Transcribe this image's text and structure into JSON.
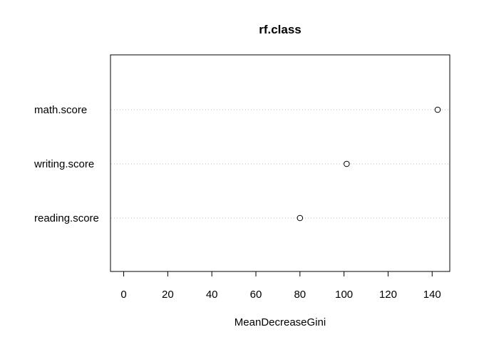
{
  "chart_data": {
    "type": "scatter",
    "title": "rf.class",
    "xlabel": "MeanDecreaseGini",
    "ylabel": "",
    "categories": [
      "math.score",
      "writing.score",
      "reading.score"
    ],
    "values": [
      142.5,
      101.2,
      80.0
    ],
    "xlim": [
      -6,
      148
    ],
    "xticks": [
      0,
      20,
      40,
      60,
      80,
      100,
      120,
      140
    ],
    "grid": "dotted guide lines per category",
    "legend": "none",
    "colors": {
      "axis": "#000000",
      "guide": "#bebebe",
      "point_stroke": "#000000",
      "point_fill": "#ffffff"
    }
  }
}
